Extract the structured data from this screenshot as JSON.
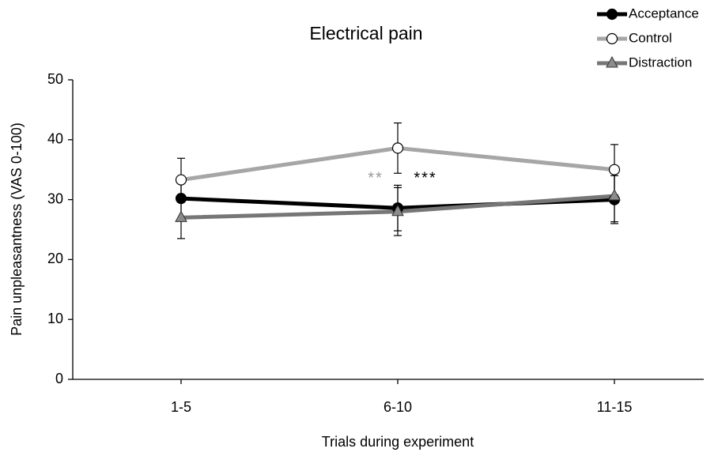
{
  "chart_data": {
    "type": "line",
    "title": "Electrical pain",
    "xlabel": "Trials during experiment",
    "ylabel": "Pain unpleasantness (VAS 0-100)",
    "categories": [
      "1-5",
      "6-10",
      "11-15"
    ],
    "series": [
      {
        "name": "Acceptance",
        "color": "#000000",
        "marker": "circle",
        "marker_fill": "#000000",
        "values": [
          30.2,
          28.6,
          30.0
        ],
        "errors": [
          3.5,
          3.8,
          4.0
        ]
      },
      {
        "name": "Control",
        "color": "#a6a6a6",
        "marker": "circle",
        "marker_fill": "#ffffff",
        "values": [
          33.3,
          38.6,
          35.0
        ],
        "errors": [
          3.6,
          4.2,
          4.2
        ]
      },
      {
        "name": "Distraction",
        "color": "#767676",
        "marker": "triangle",
        "marker_fill": "#8c8c8c",
        "values": [
          27.0,
          28.0,
          30.6
        ],
        "errors": [
          3.5,
          4.0,
          4.3
        ]
      }
    ],
    "annotations": [
      {
        "text": "**",
        "color": "#999999"
      },
      {
        "text": "***",
        "color": "#000000"
      }
    ],
    "ylim": [
      0,
      50
    ],
    "yticks": [
      0,
      10,
      20,
      30,
      40,
      50
    ],
    "legend": "upper right",
    "grid": false
  }
}
